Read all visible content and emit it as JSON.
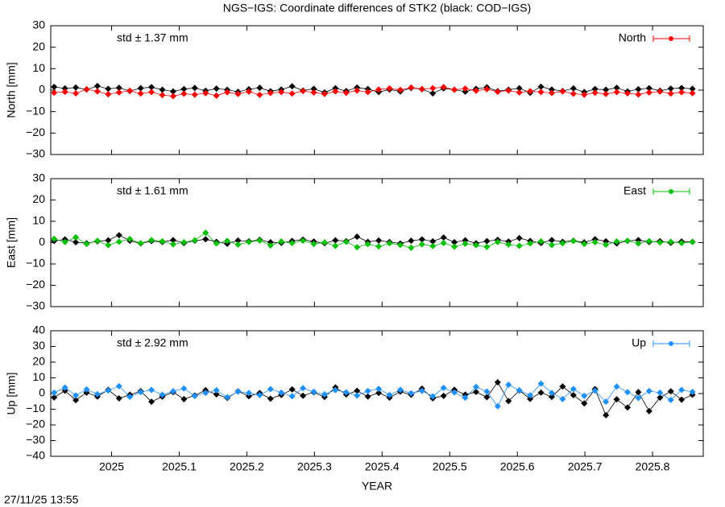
{
  "title": "NGS−IGS: Coordinate differences of STK2 (black: COD−IGS)",
  "timestamp": "27/11/25 13:55",
  "chart_data": [
    {
      "type": "line",
      "ylabel": "North [mm]",
      "annotation": "std ± 1.37 mm",
      "annotation_color": "#ff0000",
      "xlim": [
        2024.91,
        2025.875
      ],
      "xticks": [
        2025,
        2025.1,
        2025.2,
        2025.3,
        2025.4,
        2025.5,
        2025.6,
        2025.7,
        2025.8
      ],
      "ylim": [
        -30,
        30
      ],
      "yticks": [
        30,
        20,
        10,
        0,
        {
          "value": -10,
          "label": "−10"
        },
        {
          "value": -20,
          "label": "−20"
        },
        {
          "value": -30,
          "label": "−30"
        }
      ],
      "x": [
        2024.915,
        2024.931,
        2024.947,
        2024.963,
        2024.979,
        2024.995,
        2025.011,
        2025.027,
        2025.043,
        2025.059,
        2025.075,
        2025.091,
        2025.107,
        2025.123,
        2025.139,
        2025.155,
        2025.171,
        2025.187,
        2025.203,
        2025.219,
        2025.235,
        2025.251,
        2025.267,
        2025.283,
        2025.299,
        2025.315,
        2025.331,
        2025.347,
        2025.363,
        2025.379,
        2025.395,
        2025.411,
        2025.427,
        2025.443,
        2025.459,
        2025.475,
        2025.491,
        2025.507,
        2025.523,
        2025.539,
        2025.555,
        2025.571,
        2025.587,
        2025.603,
        2025.619,
        2025.635,
        2025.651,
        2025.667,
        2025.683,
        2025.699,
        2025.715,
        2025.731,
        2025.747,
        2025.763,
        2025.779,
        2025.795,
        2025.811,
        2025.827,
        2025.843,
        2025.859
      ],
      "series": [
        {
          "color": "#000000",
          "values": [
            1.5,
            0.8,
            1.2,
            0.3,
            1.9,
            0.6,
            1.1,
            -0.4,
            0.9,
            1.4,
            0.2,
            -0.6,
            0.5,
            1.0,
            -0.3,
            0.7,
            0.2,
            -0.8,
            0.4,
            1.1,
            -0.5,
            0.3,
            1.8,
            -0.2,
            0.6,
            -1.1,
            0.9,
            -0.4,
            1.2,
            0.5,
            -0.9,
            0.3,
            -0.6,
            1.0,
            0.4,
            -1.5,
            0.8,
            0.2,
            -0.7,
            0.6,
            1.3,
            -0.5,
            0.2,
            0.9,
            -1.2,
            1.6,
            0.3,
            -0.4,
            0.8,
            -0.9,
            0.5,
            0.2,
            1.1,
            -0.6,
            0.4,
            0.9,
            -0.3,
            0.7,
            1.0,
            0.6
          ]
        },
        {
          "name": "North",
          "color": "#ff0000",
          "values": [
            -1.2,
            -0.8,
            -1.5,
            0.4,
            -0.6,
            -1.9,
            -1.1,
            -0.3,
            -1.6,
            -0.9,
            -2.3,
            -2.8,
            -1.7,
            -2.1,
            -1.4,
            -2.6,
            -1.0,
            -1.8,
            -0.7,
            -2.2,
            -1.3,
            -0.9,
            -1.6,
            -0.4,
            -1.1,
            -1.8,
            -0.6,
            -1.2,
            -0.2,
            -0.9,
            0.3,
            0.8,
            0.1,
            1.2,
            0.5,
            0.9,
            1.4,
            0.2,
            0.7,
            -0.3,
            0.4,
            -0.8,
            -0.2,
            -1.1,
            -0.5,
            -0.9,
            -1.3,
            -0.6,
            -1.7,
            -2.1,
            -1.2,
            -1.8,
            -0.9,
            -1.5,
            -2.0,
            -1.1,
            -0.7,
            -1.6,
            -1.0,
            -1.4
          ]
        }
      ]
    },
    {
      "type": "line",
      "ylabel": "East [mm]",
      "annotation": "std ± 1.61 mm",
      "annotation_color": "#00c000",
      "xlim": [
        2024.91,
        2025.875
      ],
      "xticks": [
        2025,
        2025.1,
        2025.2,
        2025.3,
        2025.4,
        2025.5,
        2025.6,
        2025.7,
        2025.8
      ],
      "ylim": [
        -30,
        30
      ],
      "yticks": [
        30,
        20,
        10,
        0,
        {
          "value": -10,
          "label": "−10"
        },
        {
          "value": -20,
          "label": "−20"
        },
        {
          "value": -30,
          "label": "−30"
        }
      ],
      "x": [
        2024.915,
        2024.931,
        2024.947,
        2024.963,
        2024.979,
        2024.995,
        2025.011,
        2025.027,
        2025.043,
        2025.059,
        2025.075,
        2025.091,
        2025.107,
        2025.123,
        2025.139,
        2025.155,
        2025.171,
        2025.187,
        2025.203,
        2025.219,
        2025.235,
        2025.251,
        2025.267,
        2025.283,
        2025.299,
        2025.315,
        2025.331,
        2025.347,
        2025.363,
        2025.379,
        2025.395,
        2025.411,
        2025.427,
        2025.443,
        2025.459,
        2025.475,
        2025.491,
        2025.507,
        2025.523,
        2025.539,
        2025.555,
        2025.571,
        2025.587,
        2025.603,
        2025.619,
        2025.635,
        2025.651,
        2025.667,
        2025.683,
        2025.699,
        2025.715,
        2025.731,
        2025.747,
        2025.763,
        2025.779,
        2025.795,
        2025.811,
        2025.827,
        2025.843,
        2025.859
      ],
      "series": [
        {
          "color": "#000000",
          "values": [
            0.8,
            1.5,
            0.2,
            -0.3,
            0.6,
            1.1,
            3.5,
            0.9,
            -0.4,
            0.7,
            0.3,
            1.2,
            -0.2,
            0.9,
            1.6,
            0.4,
            -0.5,
            1.0,
            0.6,
            1.3,
            0.2,
            -0.1,
            0.8,
            1.4,
            0.5,
            -0.3,
            1.1,
            0.7,
            2.8,
            0.4,
            1.0,
            0.3,
            -0.4,
            0.9,
            1.5,
            0.6,
            2.4,
            0.2,
            1.1,
            -0.3,
            0.7,
            1.3,
            0.5,
            2.1,
            0.8,
            -0.2,
            1.2,
            0.4,
            0.9,
            0.1,
            1.6,
            0.6,
            -0.4,
            0.8,
            1.2,
            0.3,
            0.7,
            -0.1,
            0.5,
            0.4
          ]
        },
        {
          "name": "East",
          "color": "#00c000",
          "values": [
            1.8,
            0.3,
            2.5,
            -0.6,
            0.9,
            -1.2,
            0.4,
            1.7,
            -0.3,
            1.2,
            0.6,
            -0.8,
            0.2,
            1.1,
            4.6,
            -0.4,
            0.8,
            -0.9,
            0.3,
            1.0,
            -1.3,
            0.5,
            -0.2,
            0.9,
            -0.6,
            0.1,
            -1.5,
            0.4,
            -2.1,
            -0.7,
            -1.8,
            -0.3,
            -1.1,
            -2.4,
            -0.8,
            -1.6,
            -0.2,
            -1.9,
            -0.5,
            -1.2,
            -2.0,
            0.3,
            -0.9,
            -1.5,
            -0.4,
            0.6,
            -1.1,
            -0.3,
            0.8,
            -0.6,
            0.2,
            -1.0,
            0.5,
            0.9,
            -0.4,
            0.7,
            0.1,
            0.4,
            -0.2,
            0.3
          ]
        }
      ]
    },
    {
      "type": "line",
      "ylabel": "Up [mm]",
      "xlabel": "YEAR",
      "annotation": "std ± 2.92 mm",
      "annotation_color": "#1e90ff",
      "xlim": [
        2024.91,
        2025.875
      ],
      "xticks": [
        2025,
        2025.1,
        2025.2,
        2025.3,
        2025.4,
        2025.5,
        2025.6,
        2025.7,
        2025.8
      ],
      "ylim": [
        -40,
        40
      ],
      "yticks": [
        40,
        30,
        20,
        10,
        0,
        {
          "value": -10,
          "label": "−10"
        },
        {
          "value": -20,
          "label": "−20"
        },
        {
          "value": -30,
          "label": "−30"
        },
        {
          "value": -40,
          "label": "−40"
        }
      ],
      "x": [
        2024.915,
        2024.931,
        2024.947,
        2024.963,
        2024.979,
        2024.995,
        2025.011,
        2025.027,
        2025.043,
        2025.059,
        2025.075,
        2025.091,
        2025.107,
        2025.123,
        2025.139,
        2025.155,
        2025.171,
        2025.187,
        2025.203,
        2025.219,
        2025.235,
        2025.251,
        2025.267,
        2025.283,
        2025.299,
        2025.315,
        2025.331,
        2025.347,
        2025.363,
        2025.379,
        2025.395,
        2025.411,
        2025.427,
        2025.443,
        2025.459,
        2025.475,
        2025.491,
        2025.507,
        2025.523,
        2025.539,
        2025.555,
        2025.571,
        2025.587,
        2025.603,
        2025.619,
        2025.635,
        2025.651,
        2025.667,
        2025.683,
        2025.699,
        2025.715,
        2025.731,
        2025.747,
        2025.763,
        2025.779,
        2025.795,
        2025.811,
        2025.827,
        2025.843,
        2025.859
      ],
      "series": [
        {
          "color": "#000000",
          "values": [
            -2.5,
            1.8,
            -4.2,
            0.6,
            -1.9,
            2.3,
            -3.1,
            -0.8,
            1.5,
            -5.2,
            -2.0,
            0.9,
            -3.6,
            -1.2,
            2.1,
            -0.5,
            -2.8,
            1.4,
            -1.7,
            0.3,
            -3.3,
            -0.9,
            2.6,
            -1.4,
            0.8,
            -2.2,
            3.9,
            -0.6,
            1.7,
            -1.9,
            0.4,
            -2.6,
            1.2,
            -0.8,
            3.1,
            -3.0,
            -1.5,
            2.4,
            -0.7,
            1.0,
            -2.3,
            7.2,
            -4.8,
            1.9,
            -3.4,
            0.6,
            -2.1,
            4.5,
            -1.0,
            -6.3,
            2.8,
            -13.8,
            -3.7,
            -8.9,
            0.9,
            -11.2,
            -2.6,
            1.4,
            -3.9,
            -0.8
          ]
        },
        {
          "name": "Up",
          "color": "#1e90ff",
          "values": [
            0.5,
            3.8,
            -1.2,
            2.6,
            -0.4,
            1.9,
            4.7,
            -2.1,
            0.9,
            2.3,
            -0.8,
            1.5,
            3.2,
            -1.6,
            0.4,
            2.1,
            -2.4,
            1.2,
            0.3,
            -1.0,
            2.8,
            0.6,
            -1.7,
            3.4,
            1.1,
            -0.5,
            2.2,
            0.8,
            -1.3,
            1.6,
            3.0,
            -0.9,
            2.4,
            0.2,
            1.7,
            -1.8,
            3.6,
            0.7,
            -2.7,
            4.2,
            1.3,
            -8.1,
            5.6,
            2.0,
            -1.1,
            6.3,
            0.4,
            -3.5,
            2.9,
            -1.5,
            1.8,
            -5.2,
            4.4,
            0.9,
            -2.8,
            1.6,
            0.5,
            -4.1,
            2.3,
            1.0
          ]
        }
      ]
    }
  ]
}
